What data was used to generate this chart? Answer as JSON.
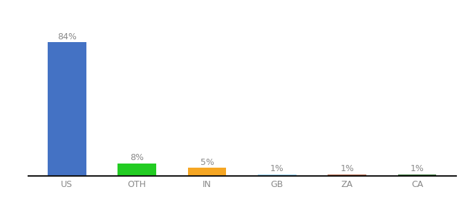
{
  "categories": [
    "US",
    "OTH",
    "IN",
    "GB",
    "ZA",
    "CA"
  ],
  "values": [
    84,
    8,
    5,
    1,
    1,
    1
  ],
  "labels": [
    "84%",
    "8%",
    "5%",
    "1%",
    "1%",
    "1%"
  ],
  "bar_colors": [
    "#4472c4",
    "#22cc22",
    "#f5a623",
    "#88ccee",
    "#aa5533",
    "#226622"
  ],
  "ylim": [
    0,
    95
  ],
  "background_color": "#ffffff",
  "label_fontsize": 9,
  "tick_fontsize": 9,
  "label_color": "#888888",
  "tick_color": "#888888",
  "bottom_spine_color": "#111111"
}
